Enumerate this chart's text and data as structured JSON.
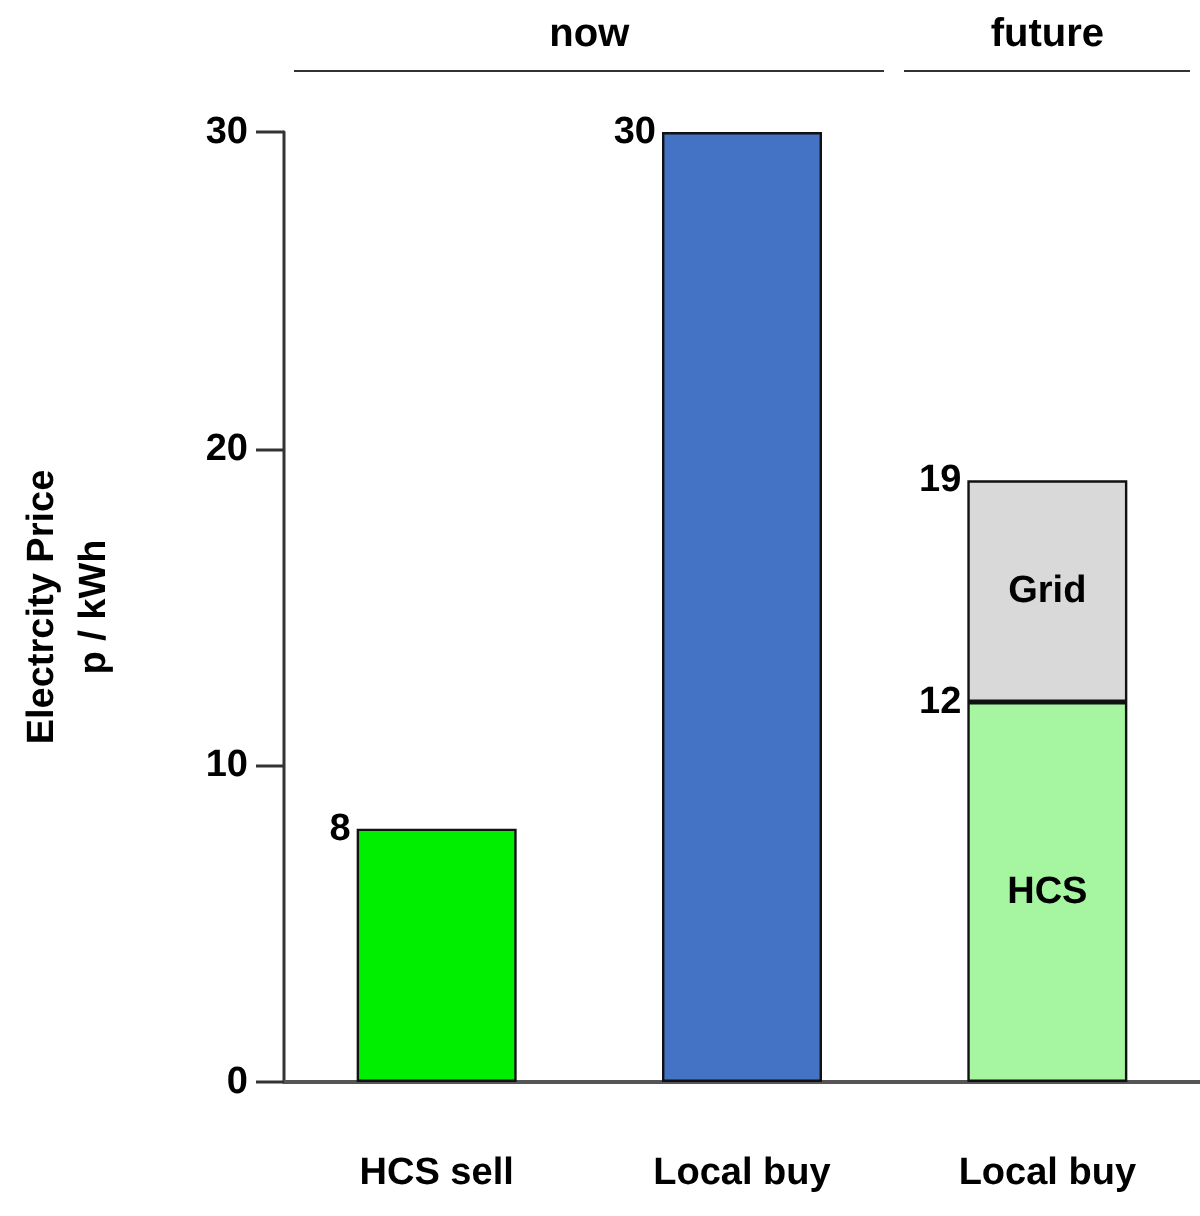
{
  "chart_data": {
    "type": "bar",
    "stacked": true,
    "ylabel": "Electrcity Price\np / kWh",
    "categories": [
      "HCS sell",
      "Local buy",
      "Local buy"
    ],
    "series": [
      {
        "colors": [
          "#00ee00",
          "#4472c4",
          "#a6f5a0"
        ],
        "values": [
          8,
          30,
          null
        ],
        "value_labels": [
          "8",
          "30",
          null
        ]
      },
      {
        "name": "HCS",
        "color": "#a6f5a0",
        "values": [
          null,
          null,
          12
        ],
        "value_labels": [
          null,
          null,
          "12"
        ]
      },
      {
        "name": "Grid",
        "color": "#d9d9d9",
        "values": [
          null,
          null,
          7
        ]
      }
    ],
    "totals": [
      null,
      null,
      "19"
    ],
    "ylim": [
      0,
      30
    ],
    "yticks": [
      0,
      10,
      20,
      30
    ],
    "grid": false,
    "annotations": [
      "now",
      "future"
    ]
  }
}
